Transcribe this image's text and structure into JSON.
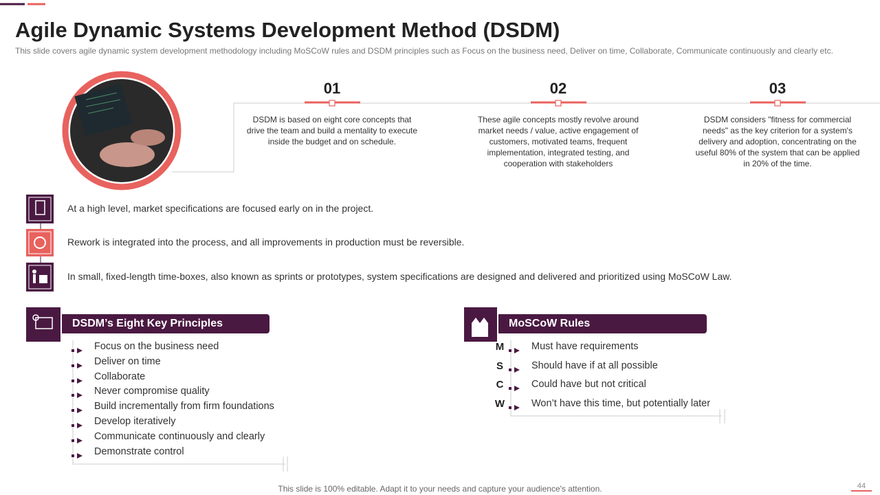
{
  "header": {
    "title": "Agile Dynamic Systems Development Method (DSDM)",
    "subtitle": "This slide covers agile dynamic system development  methodology including MoSCoW rules and DSDM principles such as Focus on the business need, Deliver  on time, Collaborate, Communicate continuously and clearly etc."
  },
  "steps": [
    {
      "number": "01",
      "text": "DSDM is based on eight core concepts that drive  the team and build a mentality to execute inside the budget and on schedule."
    },
    {
      "number": "02",
      "text": "These agile concepts mostly revolve  around market needs / value, active engagement of customers, motivated teams, frequent implementation, integrated testing, and cooperation with stakeholders"
    },
    {
      "number": "03",
      "text": "DSDM considers \"fitness for commercial needs\" as the key criterion for a system's delivery and adoption, concentrating on the useful 80% of the system that can be applied in 20% of the time."
    }
  ],
  "points": [
    "At a high level, market specifications are focused early on in the project.",
    "Rework is integrated into the process, and all improvements in production must be reversible.",
    "In small, fixed-length time-boxes, also known as sprints or prototypes, system specifications are designed and delivered and prioritized using MoSCoW Law."
  ],
  "principles": {
    "title": "DSDM’s Eight Key Principles",
    "items": [
      "Focus on the business need",
      "Deliver on time",
      "Collaborate",
      "Never compromise quality",
      "Build incrementally from firm foundations",
      "Develop iteratively",
      "Communicate continuously and clearly",
      "Demonstrate control"
    ]
  },
  "moscow": {
    "title": "MoSCoW Rules",
    "rules": [
      {
        "letter": "M",
        "text": "Must have requirements"
      },
      {
        "letter": "S",
        "text": "Should have if at all possible"
      },
      {
        "letter": "C",
        "text": "Could have but not critical"
      },
      {
        "letter": "W",
        "text": "Won’t have this time, but potentially later"
      }
    ]
  },
  "footer": {
    "note": "This slide is 100% editable. Adapt it to your needs and capture your audience's attention.",
    "page": "44"
  }
}
